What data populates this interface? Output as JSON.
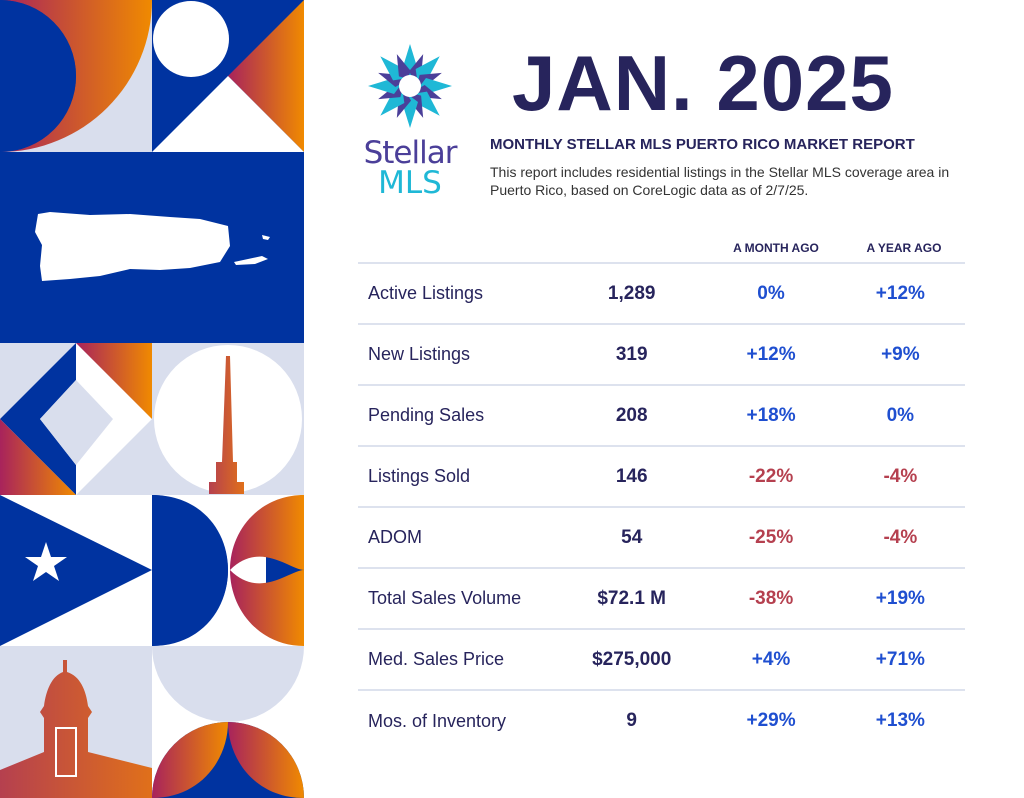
{
  "logo": {
    "line1": "Stellar",
    "line2": "MLS"
  },
  "title": "JAN. 2025",
  "subtitle": "MONTHLY STELLAR MLS PUERTO RICO MARKET REPORT",
  "description": "This report includes residential listings in the Stellar MLS coverage area in Puerto Rico, based on CoreLogic data as of 2/7/25.",
  "columns": {
    "month": "A MONTH AGO",
    "year": "A YEAR AGO"
  },
  "colors": {
    "navy": "#27245c",
    "blue": "#0033a0",
    "orange": "#f08a00",
    "magenta": "#a8235c",
    "positive": "#1f4fd0",
    "negative": "#b5404f"
  },
  "rows": [
    {
      "label": "Active Listings",
      "value": "1,289",
      "month": "0%",
      "year": "+12%",
      "month_trend": "pos",
      "year_trend": "pos"
    },
    {
      "label": "New Listings",
      "value": "319",
      "month": "+12%",
      "year": "+9%",
      "month_trend": "pos",
      "year_trend": "pos"
    },
    {
      "label": "Pending Sales",
      "value": "208",
      "month": "+18%",
      "year": "0%",
      "month_trend": "pos",
      "year_trend": "pos"
    },
    {
      "label": "Listings Sold",
      "value": "146",
      "month": "-22%",
      "year": "-4%",
      "month_trend": "neg",
      "year_trend": "neg"
    },
    {
      "label": "ADOM",
      "value": "54",
      "month": "-25%",
      "year": "-4%",
      "month_trend": "neg",
      "year_trend": "neg"
    },
    {
      "label": "Total Sales Volume",
      "value": "$72.1 M",
      "month": "-38%",
      "year": "+19%",
      "month_trend": "neg",
      "year_trend": "pos"
    },
    {
      "label": "Med. Sales Price",
      "value": "$275,000",
      "month": "+4%",
      "year": "+71%",
      "month_trend": "pos",
      "year_trend": "pos"
    },
    {
      "label": "Mos. of Inventory",
      "value": "9",
      "month": "+29%",
      "year": "+13%",
      "month_trend": "pos",
      "year_trend": "pos"
    }
  ]
}
